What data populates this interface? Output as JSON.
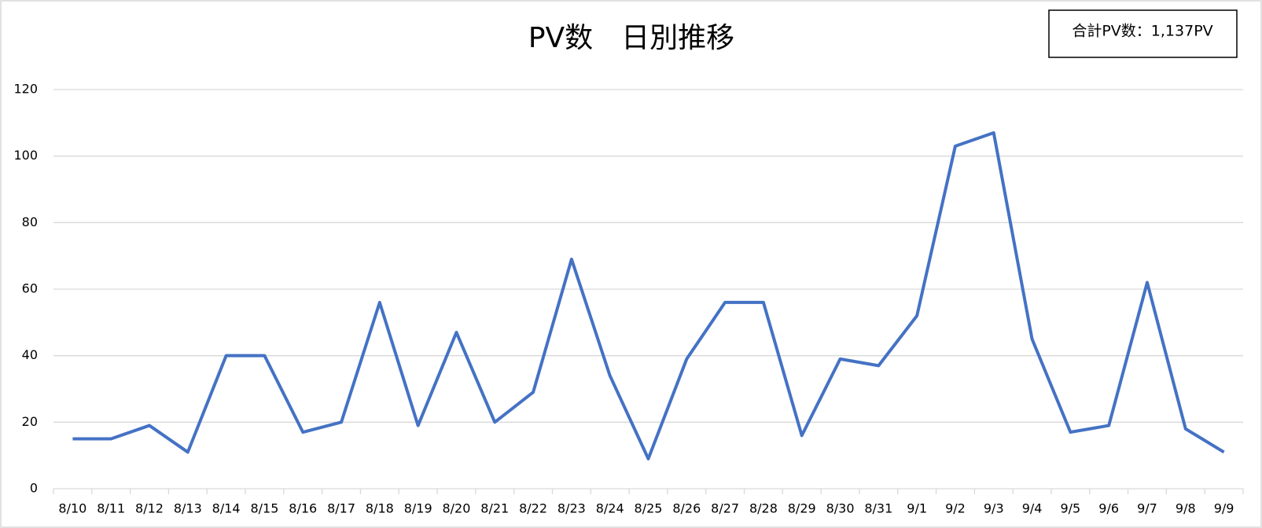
{
  "chart_data": {
    "type": "line",
    "title": "PV数　日別推移",
    "annotation": "合計PV数：1,137PV",
    "categories": [
      "8/10",
      "8/11",
      "8/12",
      "8/13",
      "8/14",
      "8/15",
      "8/16",
      "8/17",
      "8/18",
      "8/19",
      "8/20",
      "8/21",
      "8/22",
      "8/23",
      "8/24",
      "8/25",
      "8/26",
      "8/27",
      "8/28",
      "8/29",
      "8/30",
      "8/31",
      "9/1",
      "9/2",
      "9/3",
      "9/4",
      "9/5",
      "9/6",
      "9/7",
      "9/8",
      "9/9"
    ],
    "series": [
      {
        "color": "#4472c4",
        "values": [
          15,
          15,
          19,
          11,
          40,
          40,
          17,
          20,
          56,
          19,
          47,
          20,
          29,
          69,
          34,
          9,
          39,
          56,
          56,
          16,
          39,
          37,
          52,
          103,
          107,
          45,
          17,
          19,
          62,
          18,
          11
        ]
      }
    ],
    "ylim": [
      0,
      120
    ],
    "yticks": [
      0,
      20,
      40,
      60,
      80,
      100,
      120
    ],
    "grid": true
  }
}
